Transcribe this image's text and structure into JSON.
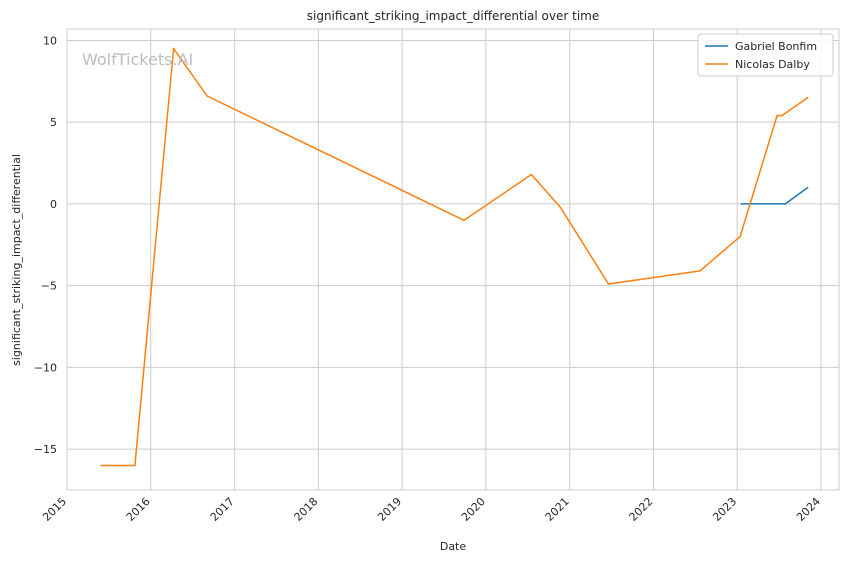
{
  "watermark": "WolfTickets.AI",
  "chart_data": {
    "type": "line",
    "title": "significant_striking_impact_differential over time",
    "xlabel": "Date",
    "ylabel": "significant_striking_impact_differential",
    "xlim": [
      "2015-01-01",
      "2024-03-20"
    ],
    "ylim": [
      -17.5,
      10.7
    ],
    "x_ticks": [
      "2015",
      "2016",
      "2017",
      "2018",
      "2019",
      "2020",
      "2021",
      "2022",
      "2023",
      "2024"
    ],
    "y_ticks": [
      -15,
      -10,
      -5,
      0,
      5,
      10
    ],
    "y_tick_labels": [
      "−15",
      "−10",
      "−5",
      "0",
      "5",
      "10"
    ],
    "grid": true,
    "legend_position": "top-right",
    "series": [
      {
        "name": "Gabriel Bonfim",
        "color": "#1f77b4",
        "x": [
          "2023-01-20",
          "2023-07-30",
          "2023-11-04"
        ],
        "y": [
          0.0,
          0.0,
          1.0
        ]
      },
      {
        "name": "Nicolas Dalby",
        "color": "#ff7f0e",
        "x": [
          "2015-05-30",
          "2015-10-24",
          "2016-04-10",
          "2016-09-03",
          "2019-09-28",
          "2020-07-18",
          "2020-11-21",
          "2021-06-19",
          "2022-07-23",
          "2023-01-14",
          "2023-06-24",
          "2023-07-15",
          "2023-11-04"
        ],
        "y": [
          -16.0,
          -16.0,
          9.5,
          6.6,
          -1.0,
          1.8,
          -0.2,
          -4.9,
          -4.1,
          -2.0,
          5.4,
          5.4,
          6.5
        ]
      }
    ]
  }
}
